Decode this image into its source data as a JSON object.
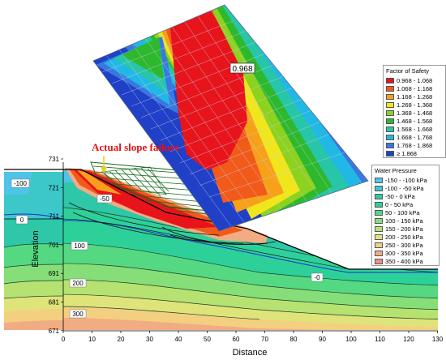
{
  "annotation": {
    "failure_label": "Actual slope failure",
    "min_fos": "0.968"
  },
  "axes": {
    "xlabel": "Distance",
    "ylabel": "Elevation",
    "xticks": [
      "0",
      "10",
      "20",
      "30",
      "40",
      "50",
      "60",
      "70",
      "80",
      "90",
      "100",
      "110",
      "120",
      "130"
    ],
    "yticks": [
      "731",
      "721",
      "711",
      "701",
      "691",
      "681",
      "671"
    ]
  },
  "contour_labels": [
    "-100",
    "-50",
    "0",
    "100",
    "200",
    "300",
    "-0"
  ],
  "fos_legend": {
    "title": "Factor of Safety",
    "items": [
      {
        "label": "0.968 - 1.068",
        "color": "#e8141c"
      },
      {
        "label": "1.068 - 1.168",
        "color": "#f25a1a"
      },
      {
        "label": "1.168 - 1.268",
        "color": "#f7a019"
      },
      {
        "label": "1.268 - 1.368",
        "color": "#f0e61a"
      },
      {
        "label": "1.368 - 1.468",
        "color": "#8cd21e"
      },
      {
        "label": "1.468 - 1.568",
        "color": "#2eb82e"
      },
      {
        "label": "1.568 - 1.668",
        "color": "#27c6a8"
      },
      {
        "label": "1.668 - 1.768",
        "color": "#22b8e6"
      },
      {
        "label": "1.768 - 1.868",
        "color": "#3a78e0"
      },
      {
        "label": "≥ 1.868",
        "color": "#2040c8"
      }
    ]
  },
  "wp_legend": {
    "title": "Water Pressure",
    "items": [
      {
        "label": "-150 - -100 kPa",
        "color": "#4fc3e8"
      },
      {
        "label": "-100 - -50 kPa",
        "color": "#3cc7c8"
      },
      {
        "label": "-50 - 0 kPa",
        "color": "#2ec7a8"
      },
      {
        "label": "0 - 50 kPa",
        "color": "#2ed09a"
      },
      {
        "label": "50 - 100 kPa",
        "color": "#55d882"
      },
      {
        "label": "100 - 150 kPa",
        "color": "#86de78"
      },
      {
        "label": "150 - 200 kPa",
        "color": "#b6e272"
      },
      {
        "label": "200 - 250 kPa",
        "color": "#dfe47a"
      },
      {
        "label": "250 - 300 kPa",
        "color": "#f2d080"
      },
      {
        "label": "300 - 350 kPa",
        "color": "#f2ac84"
      },
      {
        "label": "350 - 400 kPa",
        "color": "#ee9080"
      }
    ]
  }
}
